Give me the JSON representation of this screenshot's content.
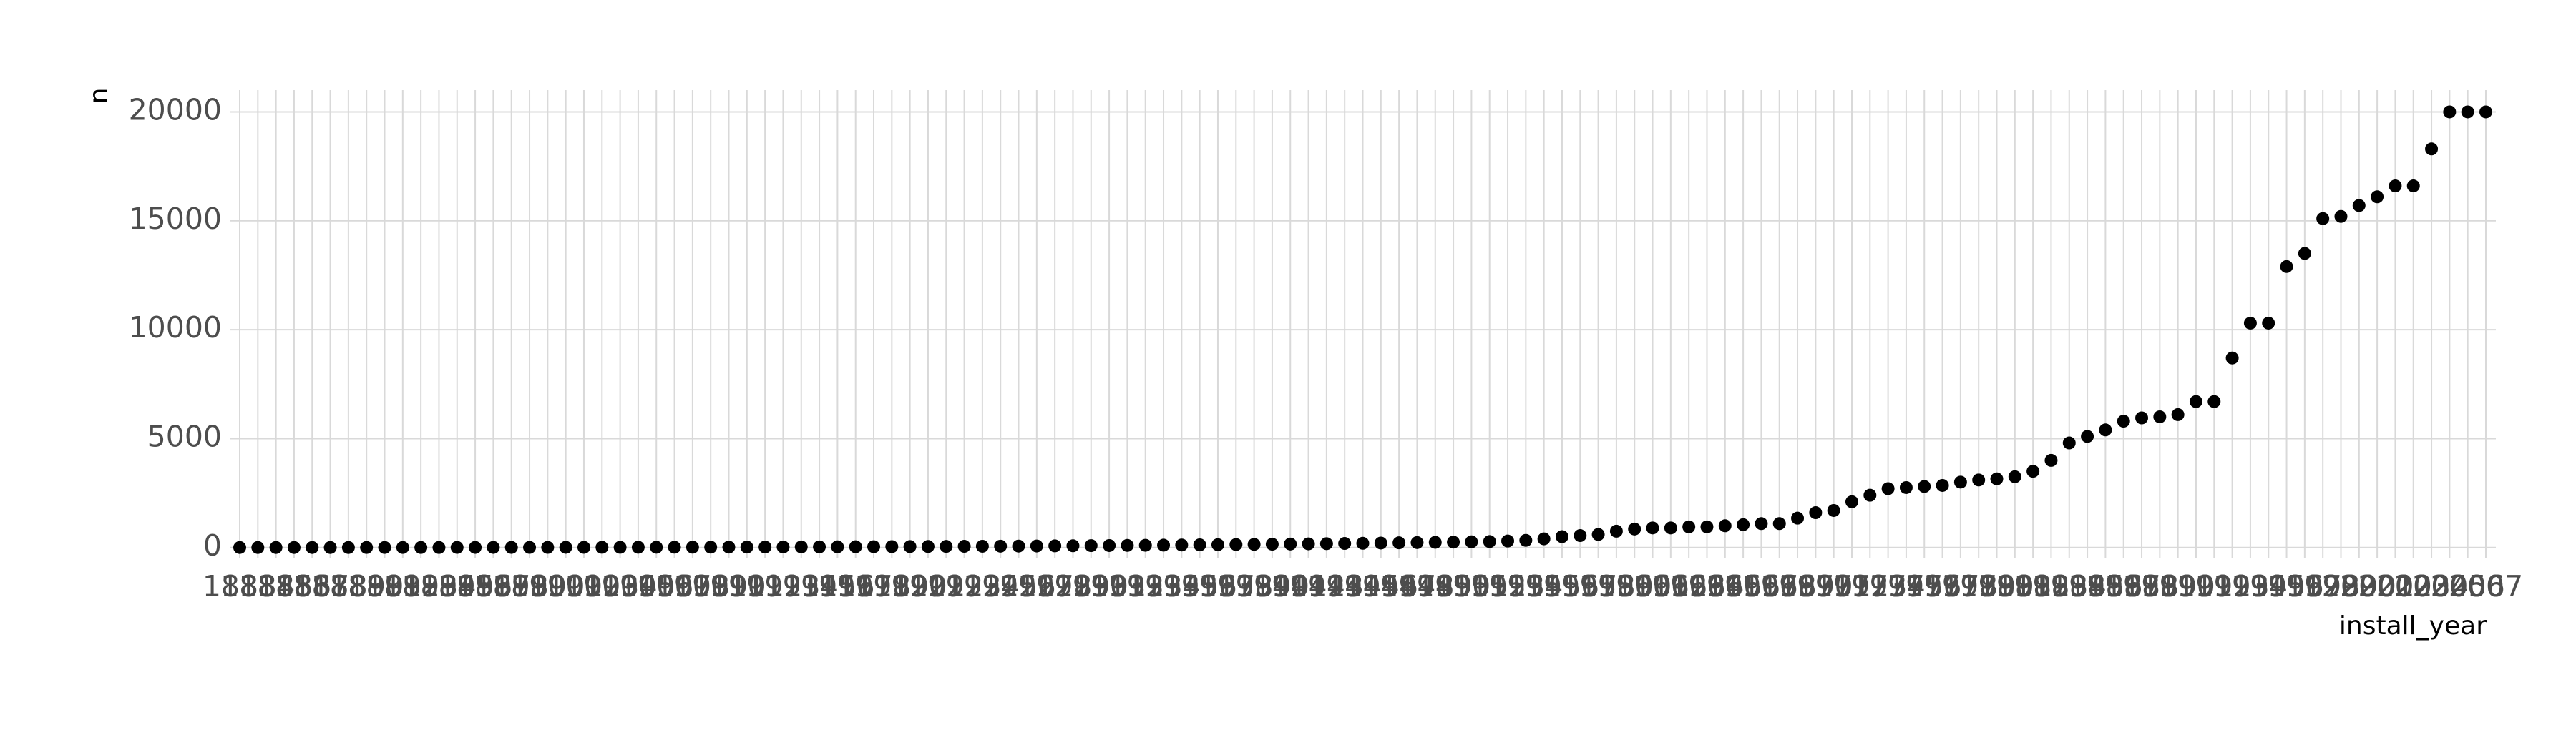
{
  "chart_data": {
    "type": "scatter",
    "x_label": "install_year",
    "y_label": "n",
    "categories": [
      "1883",
      "1884",
      "1885",
      "1886",
      "1887",
      "1888",
      "1889",
      "1890",
      "1891",
      "1892",
      "1893",
      "1894",
      "1895",
      "1896",
      "1897",
      "1898",
      "1899",
      "1900",
      "1901",
      "1902",
      "1903",
      "1904",
      "1905",
      "1906",
      "1907",
      "1908",
      "1909",
      "1910",
      "1911",
      "1912",
      "1913",
      "1914",
      "1915",
      "1916",
      "1917",
      "1918",
      "1919",
      "1920",
      "1921",
      "1922",
      "1923",
      "1924",
      "1925",
      "1926",
      "1927",
      "1928",
      "1929",
      "1930",
      "1931",
      "1932",
      "1933",
      "1934",
      "1935",
      "1936",
      "1937",
      "1938",
      "1939",
      "1940",
      "1941",
      "1942",
      "1943",
      "1944",
      "1945",
      "1946",
      "1947",
      "1948",
      "1949",
      "1950",
      "1951",
      "1952",
      "1953",
      "1954",
      "1955",
      "1956",
      "1957",
      "1958",
      "1959",
      "1960",
      "1961",
      "1962",
      "1963",
      "1964",
      "1965",
      "1966",
      "1967",
      "1968",
      "1969",
      "1970",
      "1971",
      "1972",
      "1973",
      "1974",
      "1975",
      "1976",
      "1977",
      "1978",
      "1979",
      "1980",
      "1981",
      "1982",
      "1983",
      "1984",
      "1985",
      "1986",
      "1987",
      "1988",
      "1989",
      "1990",
      "1991",
      "1992",
      "1993",
      "1994",
      "1995",
      "1996",
      "1997",
      "1998",
      "1999",
      "2000",
      "2001",
      "2002",
      "2003",
      "2004",
      "2005",
      "2006",
      "2007"
    ],
    "values": [
      1,
      1,
      1,
      1,
      2,
      2,
      2,
      3,
      3,
      3,
      4,
      4,
      5,
      5,
      6,
      6,
      7,
      8,
      9,
      10,
      11,
      12,
      13,
      14,
      15,
      17,
      18,
      20,
      22,
      24,
      26,
      28,
      30,
      33,
      36,
      39,
      42,
      45,
      48,
      52,
      56,
      60,
      64,
      68,
      72,
      77,
      82,
      87,
      92,
      98,
      104,
      110,
      117,
      124,
      131,
      138,
      146,
      154,
      162,
      170,
      179,
      188,
      197,
      207,
      217,
      228,
      239,
      250,
      262,
      275,
      300,
      330,
      400,
      500,
      550,
      600,
      750,
      850,
      900,
      900,
      950,
      950,
      1000,
      1050,
      1100,
      1100,
      1350,
      1600,
      1700,
      2100,
      2400,
      2700,
      2750,
      2800,
      2850,
      3000,
      3100,
      3150,
      3250,
      3500,
      4000,
      4800,
      5100,
      5400,
      5800,
      5950,
      6000,
      6100,
      6700,
      6700,
      8700,
      10300,
      10300,
      12900,
      13500,
      15100,
      15200,
      15700,
      16100,
      16600,
      16600,
      18300,
      20000,
      20000,
      20000
    ],
    "color": "#000000",
    "ylim": [
      -500,
      21000
    ],
    "yticks": [
      0,
      5000,
      10000,
      15000,
      20000
    ],
    "grid": true
  }
}
